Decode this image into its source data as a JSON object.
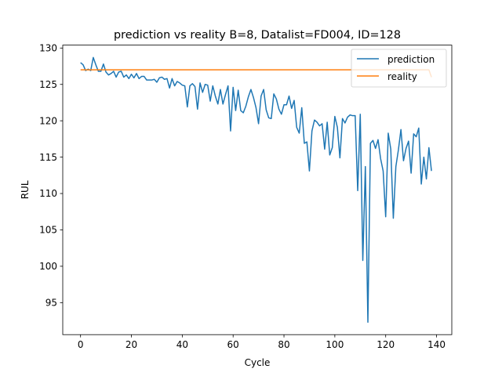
{
  "chart_data": {
    "type": "line",
    "title": "prediction vs reality B=8, Datalist=FD004, ID=128",
    "xlabel": "Cycle",
    "ylabel": "RUL",
    "xlim": [
      -7,
      146
    ],
    "ylim": [
      90.6,
      130.4
    ],
    "xticks": [
      0,
      20,
      40,
      60,
      80,
      100,
      120,
      140
    ],
    "yticks": [
      95,
      100,
      105,
      110,
      115,
      120,
      125,
      130
    ],
    "grid": false,
    "legend_position": "top-right",
    "series": [
      {
        "name": "prediction",
        "color": "#1f77b4",
        "x": [
          0,
          1,
          2,
          3,
          4,
          5,
          6,
          7,
          8,
          9,
          10,
          11,
          12,
          13,
          14,
          15,
          16,
          17,
          18,
          19,
          20,
          21,
          22,
          23,
          24,
          25,
          26,
          27,
          28,
          29,
          30,
          31,
          32,
          33,
          34,
          35,
          36,
          37,
          38,
          39,
          40,
          41,
          42,
          43,
          44,
          45,
          46,
          47,
          48,
          49,
          50,
          51,
          52,
          53,
          54,
          55,
          56,
          57,
          58,
          59,
          60,
          61,
          62,
          63,
          64,
          65,
          66,
          67,
          68,
          69,
          70,
          71,
          72,
          73,
          74,
          75,
          76,
          77,
          78,
          79,
          80,
          81,
          82,
          83,
          84,
          85,
          86,
          87,
          88,
          89,
          90,
          91,
          92,
          93,
          94,
          95,
          96,
          97,
          98,
          99,
          100,
          101,
          102,
          103,
          104,
          105,
          106,
          107,
          108,
          109,
          110,
          111,
          112,
          113,
          114,
          115,
          116,
          117,
          118,
          119,
          120,
          121,
          122,
          123,
          124,
          125,
          126,
          127,
          128,
          129,
          130,
          131,
          132,
          133,
          134,
          135,
          136,
          137,
          138
        ],
        "values": [
          128.0,
          127.7,
          126.9,
          127.1,
          126.9,
          128.7,
          127.7,
          126.8,
          126.8,
          127.8,
          126.7,
          126.3,
          126.5,
          126.8,
          126.0,
          126.7,
          126.8,
          126.0,
          126.3,
          125.8,
          126.4,
          125.9,
          126.5,
          125.8,
          126.1,
          126.1,
          125.6,
          125.6,
          125.6,
          125.7,
          125.3,
          125.9,
          126.0,
          125.7,
          125.8,
          124.5,
          125.8,
          124.8,
          125.4,
          125.2,
          124.9,
          124.8,
          121.9,
          124.8,
          125.1,
          124.7,
          121.6,
          125.2,
          123.9,
          125.0,
          124.9,
          122.7,
          124.8,
          123.4,
          122.3,
          124.3,
          122.3,
          123.6,
          124.8,
          118.6,
          124.6,
          121.4,
          124.2,
          121.4,
          121.1,
          122.0,
          123.3,
          124.3,
          123.2,
          121.8,
          119.6,
          123.4,
          124.3,
          121.5,
          120.4,
          120.3,
          123.7,
          123.0,
          121.6,
          120.9,
          122.2,
          122.2,
          123.4,
          121.7,
          122.8,
          119.1,
          118.3,
          121.8,
          116.9,
          117.1,
          113.1,
          118.6,
          120.1,
          119.8,
          119.3,
          119.6,
          116.1,
          119.8,
          115.3,
          116.3,
          120.6,
          119.1,
          114.9,
          120.3,
          119.7,
          120.5,
          120.8,
          120.7,
          120.7,
          110.4,
          120.9,
          100.8,
          113.7,
          92.3,
          116.9,
          117.3,
          116.2,
          117.4,
          114.8,
          113.1,
          106.8,
          118.3,
          116.1,
          106.6,
          113.7,
          116.0,
          118.8,
          114.5,
          116.2,
          117.2,
          112.8,
          118.2,
          117.8,
          119.0,
          111.3,
          115.0,
          112.0,
          116.3,
          113.1
        ]
      },
      {
        "name": "reality",
        "color": "#ff7f0e",
        "x": [
          0,
          137,
          138
        ],
        "values": [
          127,
          127,
          126
        ]
      }
    ]
  }
}
